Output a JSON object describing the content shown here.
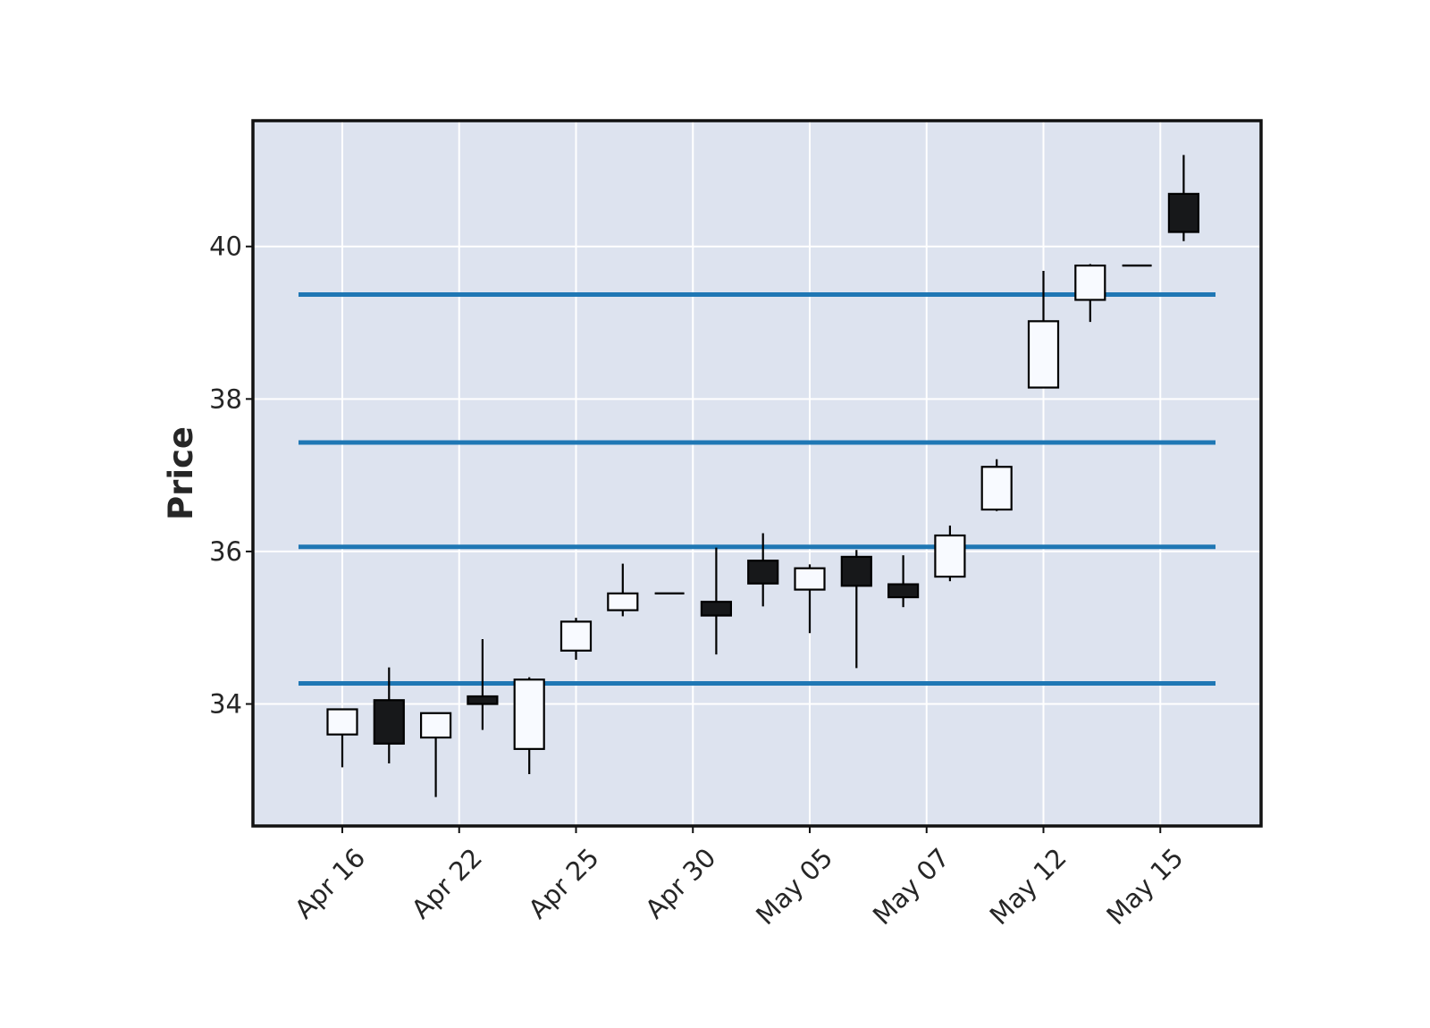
{
  "chart_data": {
    "type": "candlestick",
    "title": "",
    "xlabel": "",
    "ylabel": "Price",
    "ylim": [
      32.4,
      41.65
    ],
    "grid": true,
    "colors": {
      "background": "#dde3ef",
      "grid": "#ffffff",
      "frame": "#111111",
      "up_body": "#f8faff",
      "down_body": "#17181a",
      "wick": "#000000",
      "hlines": "#1f77b4"
    },
    "y_ticks": [
      34,
      36,
      38,
      40
    ],
    "x_ticks": [
      {
        "index": 0,
        "label": "Apr 16"
      },
      {
        "index": 2.5,
        "label": "Apr 22"
      },
      {
        "index": 5,
        "label": "Apr 25"
      },
      {
        "index": 7.5,
        "label": "Apr 30"
      },
      {
        "index": 10,
        "label": "May 05"
      },
      {
        "index": 12.5,
        "label": "May 07"
      },
      {
        "index": 15,
        "label": "May 12"
      },
      {
        "index": 17.5,
        "label": "May 15"
      }
    ],
    "candles": [
      {
        "open": 33.6,
        "high": 33.93,
        "low": 33.17,
        "close": 33.93
      },
      {
        "open": 34.05,
        "high": 34.48,
        "low": 33.22,
        "close": 33.48
      },
      {
        "open": 33.56,
        "high": 33.88,
        "low": 32.78,
        "close": 33.88
      },
      {
        "open": 34.1,
        "high": 34.85,
        "low": 33.66,
        "close": 34.0
      },
      {
        "open": 33.41,
        "high": 34.35,
        "low": 33.08,
        "close": 34.32
      },
      {
        "open": 34.7,
        "high": 35.13,
        "low": 34.58,
        "close": 35.08
      },
      {
        "open": 35.23,
        "high": 35.84,
        "low": 35.15,
        "close": 35.45
      },
      {
        "open": 35.45,
        "high": 35.45,
        "low": 35.45,
        "close": 35.45
      },
      {
        "open": 35.34,
        "high": 36.05,
        "low": 34.65,
        "close": 35.16
      },
      {
        "open": 35.88,
        "high": 36.24,
        "low": 35.28,
        "close": 35.58
      },
      {
        "open": 35.5,
        "high": 35.83,
        "low": 34.93,
        "close": 35.78
      },
      {
        "open": 35.93,
        "high": 36.02,
        "low": 34.47,
        "close": 35.55
      },
      {
        "open": 35.57,
        "high": 35.95,
        "low": 35.27,
        "close": 35.4
      },
      {
        "open": 35.67,
        "high": 36.34,
        "low": 35.61,
        "close": 36.21
      },
      {
        "open": 36.55,
        "high": 37.21,
        "low": 36.53,
        "close": 37.11
      },
      {
        "open": 38.15,
        "high": 39.68,
        "low": 38.15,
        "close": 39.02
      },
      {
        "open": 39.3,
        "high": 39.77,
        "low": 39.01,
        "close": 39.75
      },
      {
        "open": 39.75,
        "high": 39.75,
        "low": 39.75,
        "close": 39.75
      },
      {
        "open": 40.69,
        "high": 41.2,
        "low": 40.07,
        "close": 40.19
      }
    ],
    "hlines": [
      34.27,
      36.06,
      37.43,
      39.37
    ]
  }
}
